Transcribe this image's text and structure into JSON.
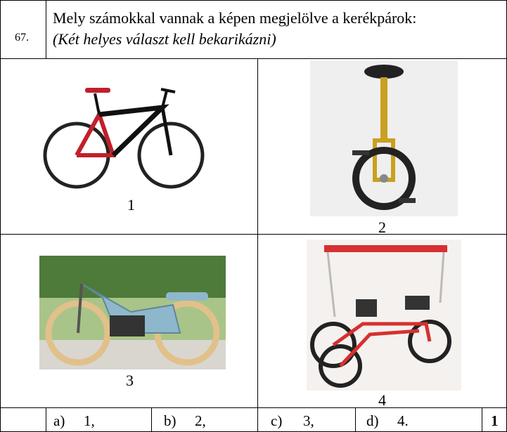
{
  "question": {
    "number": "67.",
    "text": "Mely számokkal vannak a képen megjelölve a kerékpárok:",
    "instruction": "(Két helyes választ kell bekarikázni)"
  },
  "images": [
    {
      "label": "1"
    },
    {
      "label": "2"
    },
    {
      "label": "3"
    },
    {
      "label": "4"
    }
  ],
  "answers": [
    {
      "letter": "a)",
      "value": "1,"
    },
    {
      "letter": "b)",
      "value": "2,"
    },
    {
      "letter": "c)",
      "value": "3,"
    },
    {
      "letter": "d)",
      "value": "4."
    }
  ],
  "points": "1"
}
